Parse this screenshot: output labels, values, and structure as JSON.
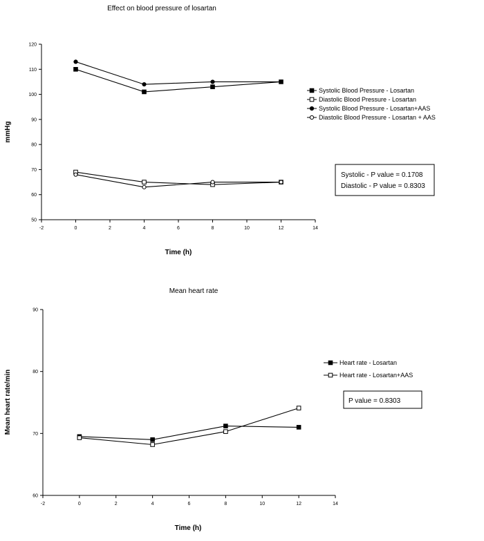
{
  "chart_data": [
    {
      "type": "line",
      "title": "Effect on blood pressure of losartan",
      "xlabel": "Time (h)",
      "ylabel": "mmHg",
      "xlim": [
        -2,
        14
      ],
      "ylim": [
        50,
        120
      ],
      "xticks": [
        "-2",
        "0",
        "2",
        "4",
        "6",
        "8",
        "10",
        "12",
        "14"
      ],
      "yticks": [
        "50",
        "60",
        "70",
        "80",
        "90",
        "100",
        "110",
        "120"
      ],
      "legend_position": "right",
      "series": [
        {
          "name": "Systolic Blood Pressure - Losartan",
          "marker": "filled-square",
          "x": [
            0,
            4,
            8,
            12
          ],
          "y": [
            110,
            101,
            103,
            105
          ]
        },
        {
          "name": "Diastolic Blood Pressure - Losartan",
          "marker": "open-square",
          "x": [
            0,
            4,
            8,
            12
          ],
          "y": [
            69,
            65,
            64,
            65
          ]
        },
        {
          "name": "Systolic Blood Pressure - Losartan+AAS",
          "marker": "filled-circle",
          "x": [
            0,
            4,
            8,
            12
          ],
          "y": [
            113,
            104,
            105,
            105
          ]
        },
        {
          "name": "Diastolic Blood Pressure - Losartan + AAS",
          "marker": "open-circle",
          "x": [
            0,
            4,
            8,
            12
          ],
          "y": [
            68,
            63,
            65,
            65
          ]
        }
      ],
      "annotations": [
        "Systolic - P value = 0.1708",
        "Diastolic - P value = 0.8303"
      ]
    },
    {
      "type": "line",
      "title": "Mean heart rate",
      "xlabel": "Time (h)",
      "ylabel": "Mean heart rate/min",
      "xlim": [
        -2,
        14
      ],
      "ylim": [
        60,
        90
      ],
      "xticks": [
        "-2",
        "0",
        "2",
        "4",
        "6",
        "8",
        "10",
        "12",
        "14"
      ],
      "yticks": [
        "60",
        "70",
        "80",
        "90"
      ],
      "legend_position": "right",
      "series": [
        {
          "name": "Heart rate - Losartan",
          "marker": "filled-square",
          "x": [
            0,
            4,
            8,
            12
          ],
          "y": [
            69.5,
            69.0,
            71.2,
            71.0
          ]
        },
        {
          "name": "Heart rate - Losartan+AAS",
          "marker": "open-square",
          "x": [
            0,
            4,
            8,
            12
          ],
          "y": [
            69.3,
            68.2,
            70.3,
            74.1
          ]
        }
      ],
      "annotations": [
        "P value = 0.8303"
      ]
    }
  ]
}
